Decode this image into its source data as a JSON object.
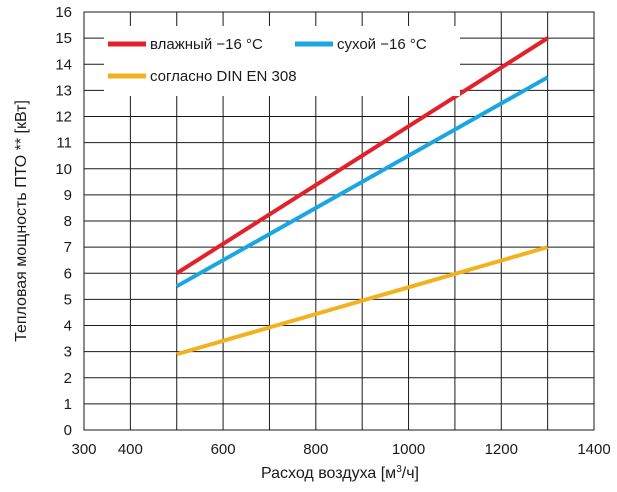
{
  "chart_data": {
    "type": "line",
    "title": "",
    "xlabel": "Расход воздуха",
    "xunit_prefix": "[м",
    "xunit_sup": "3",
    "xunit_suffix": "/ч]",
    "ylabel": "Тепловая мощность ПТО ** [кВт]",
    "xlim": [
      300,
      1400
    ],
    "ylim": [
      0,
      16
    ],
    "x_ticks": [
      300,
      400,
      600,
      800,
      1000,
      1200,
      1400
    ],
    "y_ticks": [
      0,
      1,
      2,
      3,
      4,
      5,
      6,
      7,
      8,
      9,
      10,
      11,
      12,
      13,
      14,
      15,
      16
    ],
    "grid": true,
    "legend_position": "top-left",
    "series": [
      {
        "name": "влажный −16 °C",
        "color": "#e3212b",
        "x": [
          500,
          1300
        ],
        "y": [
          6.0,
          15.0
        ]
      },
      {
        "name": "сухой −16 °C",
        "color": "#1aa7e1",
        "x": [
          500,
          1300
        ],
        "y": [
          5.5,
          13.5
        ]
      },
      {
        "name": "согласно DIN EN 308",
        "color": "#f1b21e",
        "x": [
          500,
          1300
        ],
        "y": [
          2.9,
          7.0
        ]
      }
    ]
  }
}
